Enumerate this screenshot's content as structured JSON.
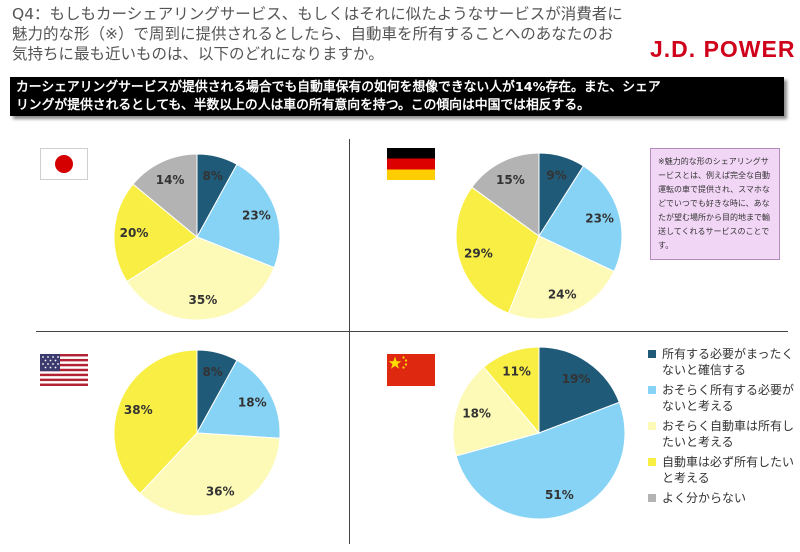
{
  "header": {
    "question": "Q4：もしもカーシェアリングサービス、もしくはそれに似たようなサービスが消費者に魅力的な形（※）で周到に提供されるとしたら、自動車を所有することへのあなたのお気持ちに最も近いものは、以下のどれになりますか。",
    "logo": "J.D. POWER"
  },
  "banner": {
    "line1": "カーシェアリングサービスが提供される場合でも自動車保有の如何を想像できない人が14%存在。また、シェア",
    "line2": "リングが提供されるとしても、半数以上の人は車の所有意向を持つ。この傾向は中国では相反する。"
  },
  "note": "※魅力的な形のシェアリングサービスとは、例えば完全な自動運転の車で提供され、スマホなどでいつでも好きな時に、あなたが望む場所から目的地まで輸送してくれるサービスのことです。",
  "flags": [
    "japan-flag",
    "germany-flag",
    "usa-flag",
    "china-flag"
  ],
  "colors": {
    "accent": "#d0021b",
    "banner_bg": "#000000",
    "note_bg": "#f2d6f6",
    "slice": [
      "#1f5a78",
      "#87d3f5",
      "#fdf9b7",
      "#f9ee43",
      "#b3b3b3"
    ]
  },
  "chart_data": [
    {
      "type": "pie",
      "values": [
        8,
        23,
        35,
        20,
        14
      ],
      "labels": [
        "8%",
        "23%",
        "35%",
        "20%",
        "14%"
      ]
    },
    {
      "type": "pie",
      "values": [
        9,
        23,
        24,
        29,
        15
      ],
      "labels": [
        "9%",
        "23%",
        "24%",
        "29%",
        "15%"
      ]
    },
    {
      "type": "pie",
      "values": [
        8,
        18,
        36,
        38
      ],
      "labels": [
        "8%",
        "18%",
        "36%",
        "38%"
      ]
    },
    {
      "type": "pie",
      "values": [
        19,
        51,
        18,
        11
      ],
      "labels": [
        "19%",
        "51%",
        "18%",
        "11%"
      ]
    }
  ],
  "legend": [
    "所有する必要がまったくないと確信する",
    "おそらく所有する必要がないと考える",
    "おそらく自動車は所有したいと考える",
    "自動車は必ず所有したいと考える",
    "よく分からない"
  ]
}
